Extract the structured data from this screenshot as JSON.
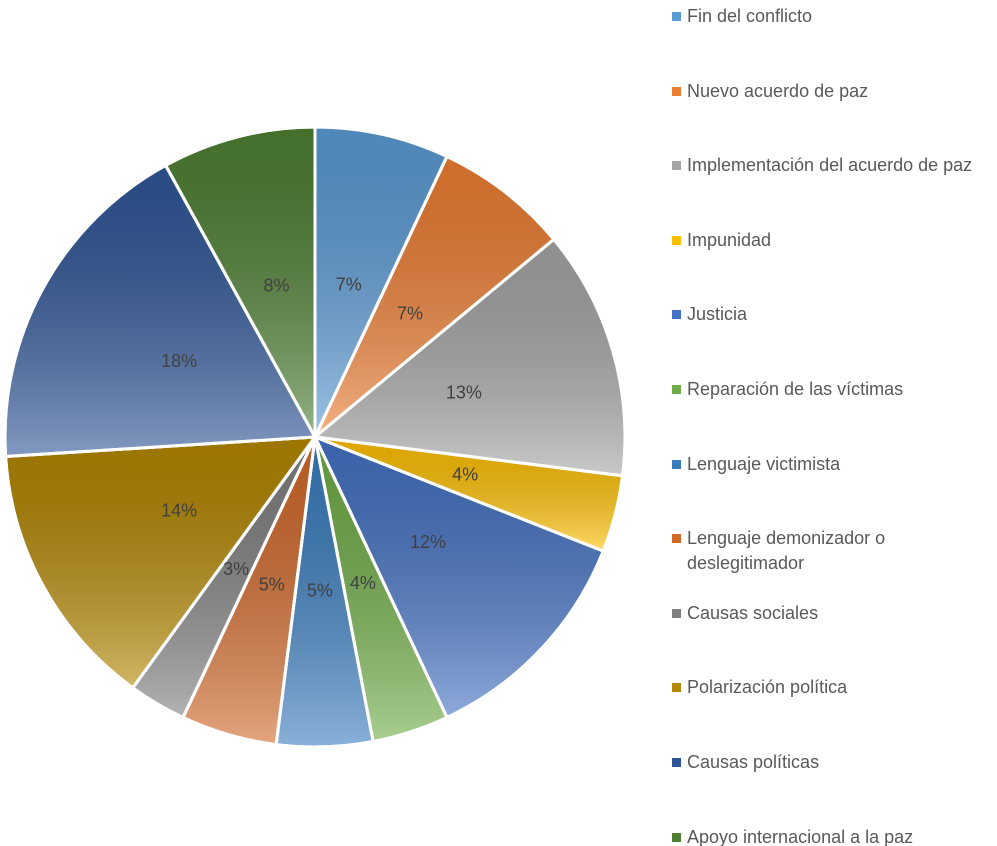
{
  "chart_data": {
    "type": "pie",
    "series": [
      {
        "name": "Fin del conflicto",
        "color": "#5b9bd5",
        "value": 7,
        "value_label": "7%"
      },
      {
        "name": "Nuevo acuerdo de paz",
        "color": "#ed7d31",
        "value": 7,
        "value_label": "7%"
      },
      {
        "name": "Implementación del acuerdo de paz",
        "color": "#a5a5a5",
        "value": 13,
        "value_label": "13%"
      },
      {
        "name": "Impunidad",
        "color": "#ffc000",
        "value": 4,
        "value_label": "4%"
      },
      {
        "name": "Justicia",
        "color": "#4472c4",
        "value": 12,
        "value_label": "12%"
      },
      {
        "name": "Reparación de las víctimas",
        "color": "#70ad47",
        "value": 4,
        "value_label": "4%"
      },
      {
        "name": "Lenguaje victimista",
        "color": "#3a7dbf",
        "value": 5,
        "value_label": "5%"
      },
      {
        "name": "Lenguaje demonizador o deslegitimador",
        "color": "#d2692a",
        "value": 5,
        "value_label": "5%"
      },
      {
        "name": "Causas sociales",
        "color": "#7f7f7f",
        "value": 3,
        "value_label": "3%"
      },
      {
        "name": "Polarización política",
        "color": "#b38600",
        "value": 14,
        "value_label": "14%"
      },
      {
        "name": "Causas políticas",
        "color": "#2f5597",
        "value": 18,
        "value_label": "18%"
      },
      {
        "name": "Apoyo internacional a la paz",
        "color": "#4e7f32",
        "value": 8,
        "value_label": "8%"
      }
    ],
    "legend": "right"
  }
}
